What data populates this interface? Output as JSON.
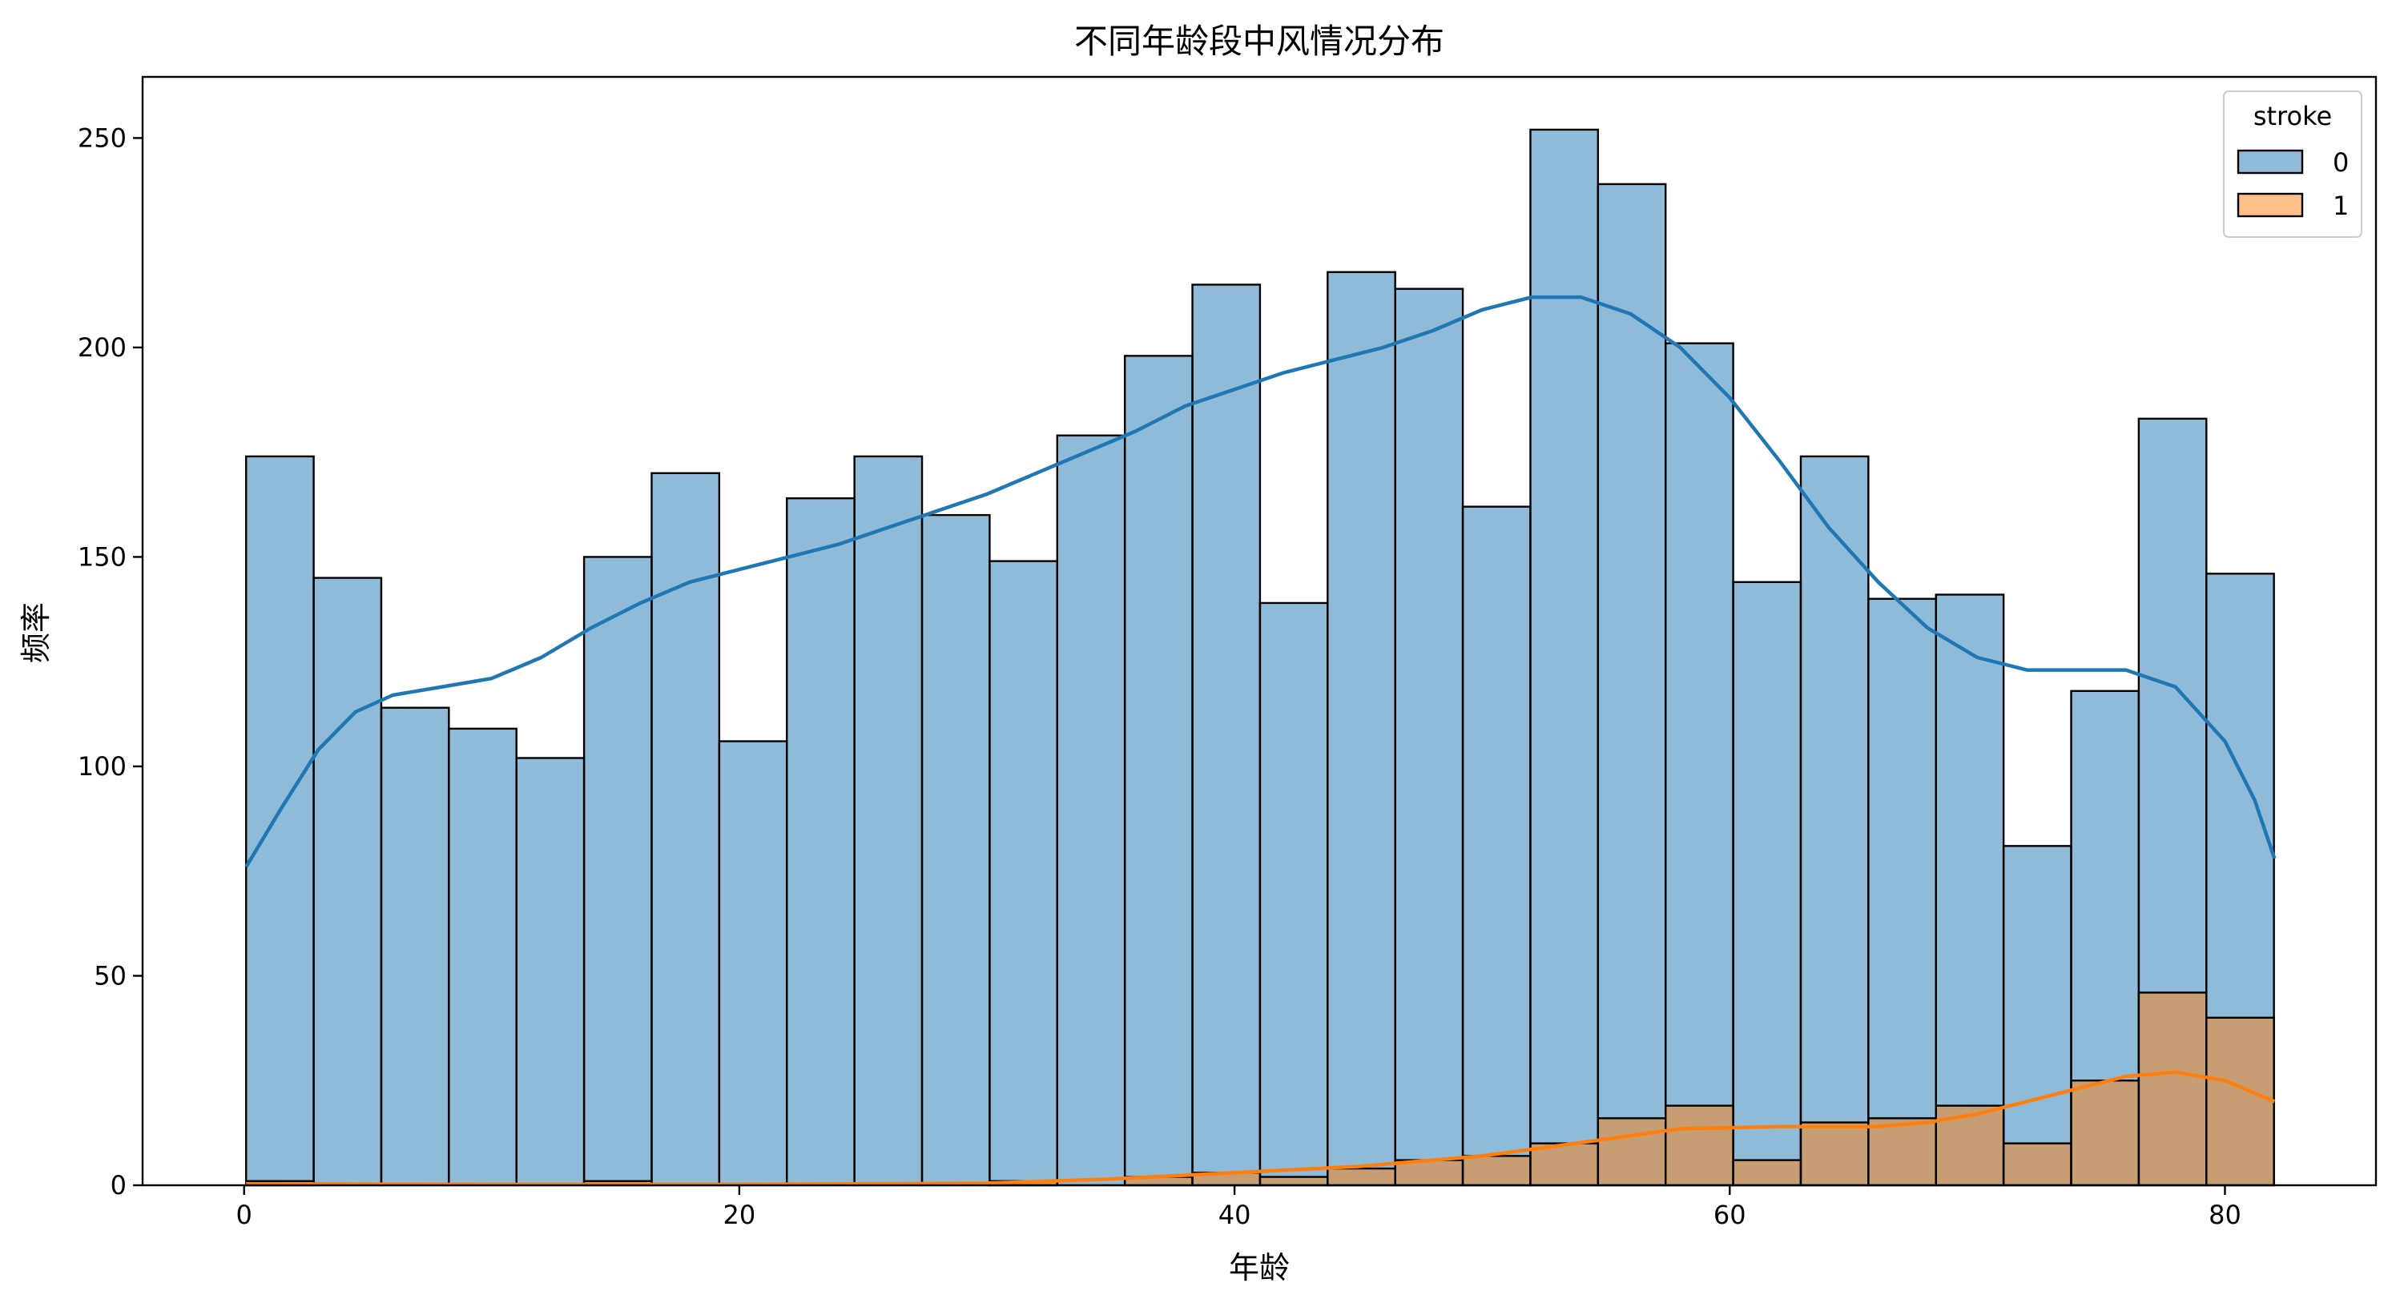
{
  "chart_data": {
    "type": "bar",
    "title": "不同年龄段中风情况分布",
    "xlabel": "年龄",
    "ylabel": "频率",
    "xlim": [
      -4.1,
      86.1
    ],
    "ylim": [
      0,
      264.6
    ],
    "xticks": [
      0,
      20,
      40,
      60,
      80
    ],
    "yticks": [
      0,
      50,
      100,
      150,
      200,
      250
    ],
    "bin_start": 0.08,
    "bin_width": 2.73,
    "legend": {
      "title": "stroke",
      "position": "top-right"
    },
    "grid": false,
    "series": [
      {
        "name": "0",
        "color": "#1f77b4",
        "values": [
          174,
          145,
          114,
          109,
          102,
          150,
          170,
          106,
          164,
          174,
          160,
          149,
          179,
          198,
          215,
          139,
          218,
          214,
          162,
          252,
          239,
          201,
          144,
          174,
          140,
          141,
          81,
          118,
          183,
          146
        ],
        "kde": [
          [
            0.08,
            76
          ],
          [
            1.5,
            90
          ],
          [
            3,
            104
          ],
          [
            4.5,
            113
          ],
          [
            6,
            117
          ],
          [
            8,
            119
          ],
          [
            10,
            121
          ],
          [
            12,
            126
          ],
          [
            14,
            133
          ],
          [
            16,
            139
          ],
          [
            18,
            144
          ],
          [
            20,
            147
          ],
          [
            22,
            150
          ],
          [
            24,
            153
          ],
          [
            26,
            157
          ],
          [
            28,
            161
          ],
          [
            30,
            165
          ],
          [
            32,
            170
          ],
          [
            34,
            175
          ],
          [
            36,
            180
          ],
          [
            38,
            186
          ],
          [
            40,
            190
          ],
          [
            42,
            194
          ],
          [
            44,
            197
          ],
          [
            46,
            200
          ],
          [
            48,
            204
          ],
          [
            50,
            209
          ],
          [
            52,
            212
          ],
          [
            54,
            212
          ],
          [
            56,
            208
          ],
          [
            58,
            200
          ],
          [
            60,
            188
          ],
          [
            62,
            173
          ],
          [
            64,
            157
          ],
          [
            66,
            144
          ],
          [
            68,
            133
          ],
          [
            70,
            126
          ],
          [
            72,
            123
          ],
          [
            74,
            123
          ],
          [
            76,
            123
          ],
          [
            78,
            119
          ],
          [
            80,
            106
          ],
          [
            81.2,
            92
          ],
          [
            82,
            78
          ]
        ]
      },
      {
        "name": "1",
        "color": "#ff7f0e",
        "values": [
          1,
          0,
          0,
          0,
          0,
          1,
          0,
          0,
          0,
          0,
          0,
          1,
          0,
          2,
          3,
          2,
          4,
          6,
          7,
          10,
          16,
          19,
          6,
          15,
          16,
          19,
          10,
          25,
          46,
          40
        ],
        "kde": [
          [
            0.08,
            0.3
          ],
          [
            10,
            0.2
          ],
          [
            20,
            0.2
          ],
          [
            30,
            0.5
          ],
          [
            35,
            1.5
          ],
          [
            40,
            3
          ],
          [
            45,
            4.5
          ],
          [
            50,
            7
          ],
          [
            55,
            11
          ],
          [
            58,
            13.5
          ],
          [
            62,
            14
          ],
          [
            66,
            14
          ],
          [
            68,
            15
          ],
          [
            70,
            17
          ],
          [
            72,
            20
          ],
          [
            74,
            23
          ],
          [
            76,
            26
          ],
          [
            78,
            27
          ],
          [
            80,
            25
          ],
          [
            82,
            20
          ]
        ]
      }
    ]
  }
}
